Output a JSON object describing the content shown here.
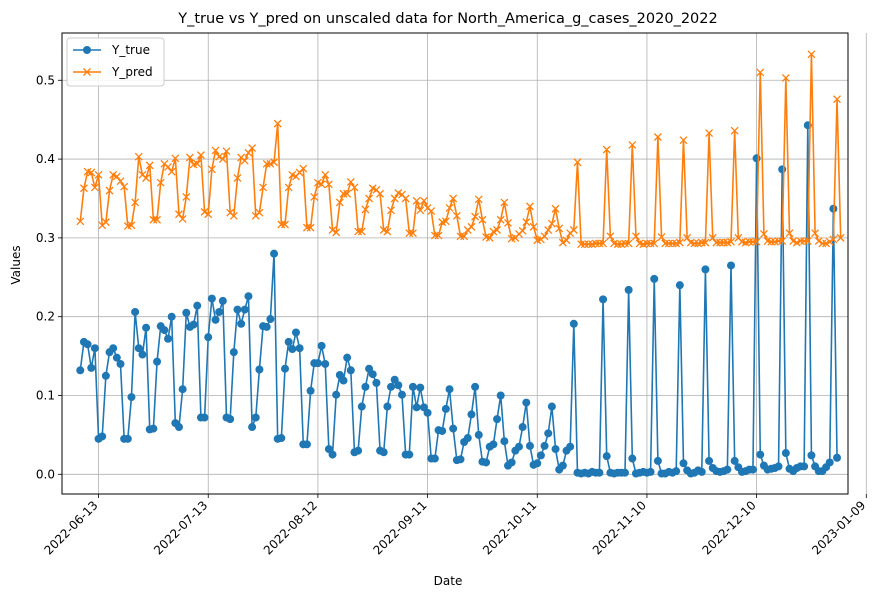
{
  "chart_data": {
    "type": "line",
    "title": "Y_true vs Y_pred on unscaled data for North_America_g_cases_2020_2022",
    "xlabel": "Date",
    "ylabel": "Values",
    "x_start": "2022-06-08",
    "x_end": "2022-12-30",
    "xlim": [
      "2022-06-03",
      "2023-01-04"
    ],
    "ylim": [
      -0.025,
      0.56
    ],
    "xticks": [
      "2022-06-13",
      "2022-07-13",
      "2022-08-12",
      "2022-09-11",
      "2022-10-11",
      "2022-11-10",
      "2022-12-10",
      "2023-01-09"
    ],
    "yticks": [
      0.0,
      0.1,
      0.2,
      0.3,
      0.4,
      0.5
    ],
    "grid": true,
    "legend_position": "top-left",
    "series": [
      {
        "name": "Y_true",
        "color": "#1f77b4",
        "marker": "circle",
        "values": [
          0.132,
          0.168,
          0.165,
          0.135,
          0.16,
          0.045,
          0.048,
          0.125,
          0.155,
          0.16,
          0.148,
          0.14,
          0.045,
          0.045,
          0.098,
          0.206,
          0.16,
          0.152,
          0.186,
          0.057,
          0.058,
          0.143,
          0.188,
          0.183,
          0.172,
          0.2,
          0.065,
          0.06,
          0.108,
          0.205,
          0.187,
          0.19,
          0.214,
          0.072,
          0.072,
          0.174,
          0.223,
          0.196,
          0.206,
          0.22,
          0.072,
          0.07,
          0.155,
          0.209,
          0.191,
          0.209,
          0.226,
          0.06,
          0.072,
          0.133,
          0.188,
          0.187,
          0.197,
          0.28,
          0.045,
          0.046,
          0.134,
          0.168,
          0.159,
          0.18,
          0.16,
          0.038,
          0.038,
          0.106,
          0.141,
          0.141,
          0.163,
          0.14,
          0.032,
          0.025,
          0.101,
          0.126,
          0.119,
          0.148,
          0.132,
          0.028,
          0.03,
          0.086,
          0.111,
          0.134,
          0.127,
          0.116,
          0.03,
          0.028,
          0.086,
          0.111,
          0.12,
          0.113,
          0.101,
          0.025,
          0.025,
          0.111,
          0.085,
          0.11,
          0.085,
          0.078,
          0.02,
          0.02,
          0.056,
          0.055,
          0.083,
          0.108,
          0.058,
          0.018,
          0.019,
          0.041,
          0.046,
          0.076,
          0.111,
          0.05,
          0.016,
          0.015,
          0.035,
          0.038,
          0.07,
          0.1,
          0.042,
          0.011,
          0.015,
          0.03,
          0.035,
          0.06,
          0.091,
          0.036,
          0.012,
          0.014,
          0.024,
          0.036,
          0.052,
          0.086,
          0.032,
          0.006,
          0.011,
          0.03,
          0.035,
          0.191,
          0.002,
          0.001,
          0.002,
          0.001,
          0.003,
          0.002,
          0.002,
          0.222,
          0.023,
          0.002,
          0.001,
          0.002,
          0.002,
          0.002,
          0.234,
          0.02,
          0.001,
          0.002,
          0.003,
          0.002,
          0.003,
          0.248,
          0.017,
          0.001,
          0.001,
          0.003,
          0.002,
          0.004,
          0.24,
          0.014,
          0.005,
          0.001,
          0.002,
          0.005,
          0.003,
          0.26,
          0.017,
          0.008,
          0.004,
          0.003,
          0.004,
          0.006,
          0.265,
          0.017,
          0.009,
          0.003,
          0.004,
          0.006,
          0.006,
          0.401,
          0.025,
          0.011,
          0.006,
          0.007,
          0.008,
          0.01,
          0.387,
          0.027,
          0.007,
          0.004,
          0.008,
          0.01,
          0.01,
          0.443,
          0.024,
          0.01,
          0.004,
          0.004,
          0.009,
          0.015,
          0.337,
          0.021
        ]
      },
      {
        "name": "Y_pred",
        "color": "#ff7f0e",
        "marker": "x",
        "values": [
          0.321,
          0.363,
          0.384,
          0.383,
          0.364,
          0.38,
          0.316,
          0.32,
          0.36,
          0.38,
          0.378,
          0.372,
          0.365,
          0.315,
          0.316,
          0.345,
          0.403,
          0.38,
          0.376,
          0.392,
          0.323,
          0.323,
          0.37,
          0.394,
          0.39,
          0.384,
          0.401,
          0.33,
          0.324,
          0.352,
          0.402,
          0.393,
          0.394,
          0.405,
          0.333,
          0.33,
          0.387,
          0.411,
          0.403,
          0.4,
          0.41,
          0.332,
          0.328,
          0.376,
          0.402,
          0.398,
          0.408,
          0.414,
          0.328,
          0.332,
          0.364,
          0.394,
          0.394,
          0.396,
          0.445,
          0.317,
          0.317,
          0.364,
          0.38,
          0.378,
          0.383,
          0.388,
          0.313,
          0.313,
          0.352,
          0.37,
          0.368,
          0.38,
          0.368,
          0.31,
          0.307,
          0.345,
          0.356,
          0.356,
          0.371,
          0.364,
          0.308,
          0.308,
          0.336,
          0.35,
          0.363,
          0.361,
          0.356,
          0.31,
          0.308,
          0.335,
          0.35,
          0.357,
          0.355,
          0.35,
          0.306,
          0.306,
          0.347,
          0.335,
          0.347,
          0.338,
          0.334,
          0.303,
          0.303,
          0.32,
          0.321,
          0.338,
          0.35,
          0.328,
          0.302,
          0.302,
          0.31,
          0.314,
          0.327,
          0.349,
          0.323,
          0.301,
          0.3,
          0.308,
          0.31,
          0.323,
          0.345,
          0.319,
          0.299,
          0.3,
          0.305,
          0.309,
          0.32,
          0.34,
          0.314,
          0.297,
          0.298,
          0.302,
          0.31,
          0.318,
          0.337,
          0.312,
          0.294,
          0.297,
          0.306,
          0.31,
          0.396,
          0.292,
          0.292,
          0.292,
          0.292,
          0.293,
          0.293,
          0.293,
          0.412,
          0.302,
          0.293,
          0.292,
          0.292,
          0.293,
          0.293,
          0.418,
          0.302,
          0.293,
          0.292,
          0.293,
          0.293,
          0.293,
          0.428,
          0.301,
          0.293,
          0.293,
          0.293,
          0.293,
          0.294,
          0.424,
          0.3,
          0.294,
          0.293,
          0.293,
          0.294,
          0.294,
          0.433,
          0.3,
          0.294,
          0.294,
          0.294,
          0.294,
          0.295,
          0.436,
          0.3,
          0.295,
          0.294,
          0.295,
          0.295,
          0.295,
          0.51,
          0.305,
          0.296,
          0.295,
          0.295,
          0.296,
          0.296,
          0.503,
          0.306,
          0.296,
          0.294,
          0.296,
          0.296,
          0.296,
          0.533,
          0.306,
          0.296,
          0.293,
          0.293,
          0.295,
          0.298,
          0.476,
          0.3
        ]
      }
    ]
  }
}
